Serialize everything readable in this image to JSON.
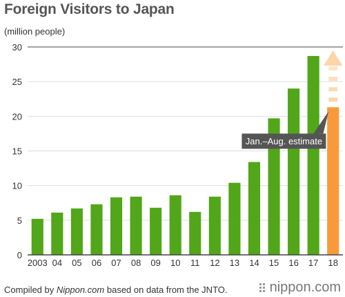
{
  "title": "Foreign Visitors to Japan",
  "unit_label": "(million people)",
  "footer": {
    "prefix": "Compiled by ",
    "site": "Nippon.com",
    "suffix": " based on data from the JNTO."
  },
  "logo_text": "nippon.com",
  "colors": {
    "bar": "#52a619",
    "estimate": "#f89a3c",
    "estimate_light": "#fcd5a8",
    "callout_bg": "#555555",
    "axis": "#444444",
    "grid": "#dddddd"
  },
  "chart_data": {
    "type": "bar",
    "categories": [
      "2003",
      "04",
      "05",
      "06",
      "07",
      "08",
      "09",
      "10",
      "11",
      "12",
      "13",
      "14",
      "15",
      "16",
      "17",
      "18"
    ],
    "values": [
      5.2,
      6.1,
      6.7,
      7.3,
      8.3,
      8.4,
      6.8,
      8.6,
      6.2,
      8.4,
      10.4,
      13.4,
      19.7,
      24.0,
      28.7,
      21.3
    ],
    "estimate_index": 15,
    "estimate_arrow_top": 29.5,
    "ylim": [
      0,
      30
    ],
    "yticks": [
      0,
      5,
      10,
      15,
      20,
      25,
      30
    ],
    "annotation": "Jan.–Aug. estimate"
  }
}
